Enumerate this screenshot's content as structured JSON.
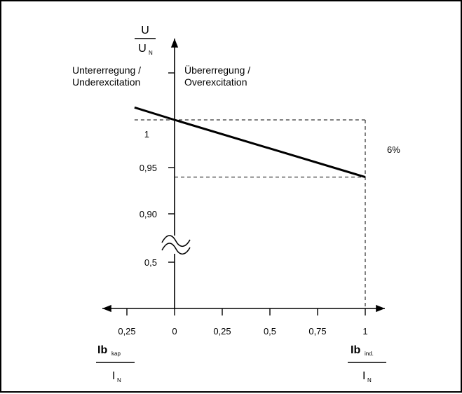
{
  "chart_data": {
    "type": "line",
    "x_tick_labels": [
      "0,25",
      "0",
      "0,25",
      "0,5",
      "0,75",
      "1"
    ],
    "x_ticks": [
      -0.25,
      0,
      0.25,
      0.5,
      0.75,
      1
    ],
    "y_tick_labels": [
      "1",
      "0,95",
      "0,90",
      "0,5"
    ],
    "y_axis_label": {
      "num": "U",
      "den": "U",
      "den_sub": "N"
    },
    "x_left_label": {
      "num": "Ib",
      "num_sub": "kap",
      "den": "I",
      "den_sub": "N"
    },
    "x_right_label": {
      "num": "Ib",
      "num_sub": "ind.",
      "den": "I",
      "den_sub": "N"
    },
    "region_left": {
      "line1": "Untererregung /",
      "line2": "Underexcitation"
    },
    "region_right": {
      "line1": "Übererregung /",
      "line2": "Overexcitation"
    },
    "annotation": "6%",
    "axis_break": true,
    "series": [
      {
        "x": [
          -0.21,
          0,
          1
        ],
        "y": [
          1.013,
          1.0,
          0.94
        ]
      }
    ],
    "reference_lines": [
      {
        "y": 1.0,
        "x_range": [
          -0.21,
          1
        ]
      },
      {
        "y": 0.94,
        "x_range": [
          0,
          1
        ]
      },
      {
        "x": 1,
        "y_range": [
          0.94,
          1.0
        ]
      }
    ],
    "colors": {
      "line": "#000000",
      "background": "#ffffff"
    }
  }
}
